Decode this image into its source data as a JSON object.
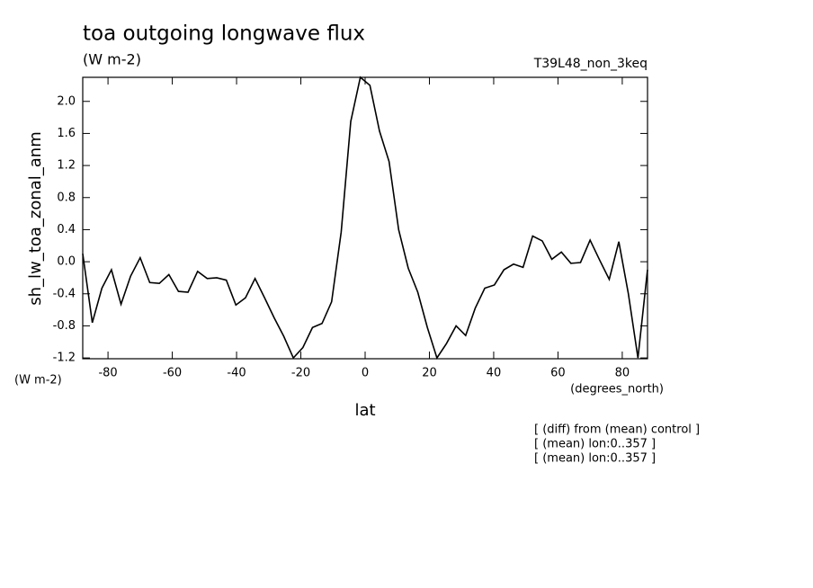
{
  "chart_data": {
    "type": "line",
    "title": "toa outgoing longwave flux",
    "subtitle": "(W m-2)",
    "run_label": "T39L48_non_3keq",
    "y_label": "sh_lw_toa_zonal_anm",
    "y_unit": "(W m-2)",
    "x_label": "lat",
    "x_unit": "(degrees_north)",
    "annotations": [
      "[ (diff) from (mean) control ]",
      "[ (mean) lon:0..357 ]",
      "[ (mean) lon:0..357 ]"
    ],
    "x": [
      -87.86,
      -84.88,
      -81.9,
      -78.93,
      -75.95,
      -72.97,
      -69.99,
      -67.01,
      -64.03,
      -61.06,
      -58.08,
      -55.1,
      -52.12,
      -49.14,
      -46.17,
      -43.19,
      -40.21,
      -37.23,
      -34.25,
      -31.28,
      -28.3,
      -25.32,
      -22.34,
      -19.36,
      -16.38,
      -13.41,
      -10.43,
      -7.45,
      -4.47,
      -1.49,
      1.49,
      4.47,
      7.45,
      10.43,
      13.41,
      16.38,
      19.36,
      22.34,
      25.32,
      28.3,
      31.28,
      34.25,
      37.23,
      40.21,
      43.19,
      46.17,
      49.14,
      52.12,
      55.1,
      58.08,
      61.06,
      64.03,
      67.01,
      69.99,
      72.97,
      75.95,
      78.93,
      81.9,
      84.88,
      87.86
    ],
    "series": [
      {
        "color": "#000000",
        "values": [
          0.1,
          -0.76,
          -0.33,
          -0.1,
          -0.53,
          -0.18,
          0.05,
          -0.26,
          -0.27,
          -0.16,
          -0.37,
          -0.38,
          -0.12,
          -0.21,
          -0.2,
          -0.23,
          -0.54,
          -0.45,
          -0.21,
          -0.45,
          -0.7,
          -0.93,
          -1.2,
          -1.07,
          -0.82,
          -0.77,
          -0.5,
          0.37,
          1.75,
          2.3,
          2.2,
          1.63,
          1.25,
          0.4,
          -0.08,
          -0.38,
          -0.82,
          -1.2,
          -1.02,
          -0.8,
          -0.92,
          -0.58,
          -0.33,
          -0.29,
          -0.1,
          -0.03,
          -0.07,
          0.32,
          0.26,
          0.03,
          0.12,
          -0.02,
          -0.01,
          0.27,
          0.02,
          -0.22,
          0.25,
          -0.4,
          -1.2,
          -0.1
        ]
      }
    ],
    "xlim": [
      -87.86,
      87.86
    ],
    "ylim": [
      -1.21,
      2.3
    ],
    "xticks": [
      -80,
      -60,
      -40,
      -20,
      0,
      20,
      40,
      60,
      80
    ],
    "yticks": [
      -1.2,
      -0.8,
      -0.4,
      {
        "value": 0,
        "label": "0.0"
      },
      0.4,
      0.8,
      1.2,
      1.6,
      {
        "value": 2,
        "label": "2.0"
      }
    ]
  }
}
